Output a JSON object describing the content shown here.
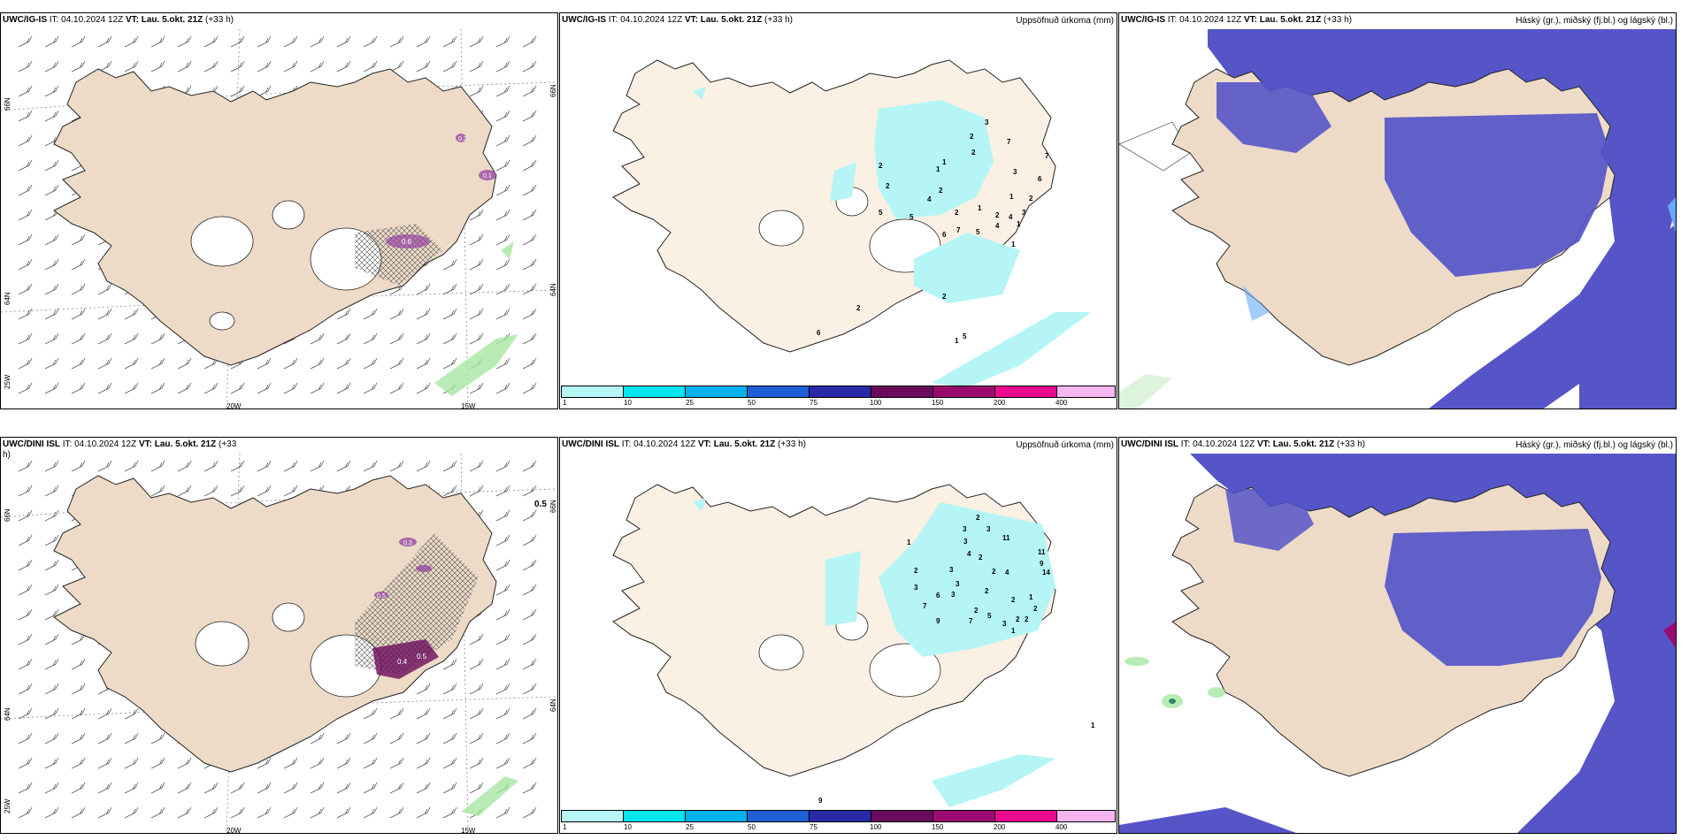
{
  "colors": {
    "land": "#eddbc8",
    "land_light": "#fbf0e4",
    "sea": "#ffffff",
    "cloud_blue": "#5555c8",
    "cloud_light": "#66aaff",
    "precip_1": "#b5f5f5",
    "precip_10": "#00e5ee",
    "precip_25": "#00b2ee",
    "precip_50": "#1f5fd6",
    "precip_75": "#2a2aa8",
    "precip_100": "#6a0b5c",
    "precip_150": "#9b0b6f",
    "precip_200": "#ea0a8e",
    "precip_400": "#f5b6f0",
    "green_light": "#a8e6a3",
    "purple_precip": "#9a4ba0"
  },
  "panels": [
    {
      "id": "ig-wind",
      "model": "UWC/IG-IS",
      "it_label": "IT:",
      "it_value": "04.10.2024 12Z",
      "vt_label": "VT:",
      "vt_value": "Lau. 5.okt. 21Z",
      "lead": "(+33 h)",
      "right_title": "",
      "lon_labels": [
        "20W",
        "15W"
      ],
      "lat_labels": [
        "66N",
        "64N",
        "25W"
      ],
      "lat_labels_right": [
        "66N",
        "64N"
      ],
      "precip_labels": [
        "0.6",
        "0.2",
        "0.1"
      ]
    },
    {
      "id": "ig-precip",
      "model": "UWC/IG-IS",
      "it_label": "IT:",
      "it_value": "04.10.2024 12Z",
      "vt_label": "VT:",
      "vt_value": "Lau. 5.okt. 21Z",
      "lead": "(+33 h)",
      "right_title": "Uppsöfnuð úrkoma (mm)",
      "numbers": [
        "3",
        "2",
        "2",
        "7",
        "7",
        "2",
        "1",
        "3",
        "6",
        "2",
        "2",
        "1",
        "2",
        "1",
        "2",
        "1",
        "4",
        "2",
        "4",
        "3",
        "5",
        "7",
        "5",
        "6",
        "1",
        "1",
        "4",
        "5",
        "2",
        "5",
        "1",
        "2",
        "6"
      ]
    },
    {
      "id": "ig-clouds",
      "model": "UWC/IG-IS",
      "it_label": "IT:",
      "it_value": "04.10.2024 12Z",
      "vt_label": "VT:",
      "vt_value": "Lau. 5.okt. 21Z",
      "lead": "(+33 h)",
      "right_title": "Háský (gr.), miðský (fj.bl.) og lágský (bl.)"
    },
    {
      "id": "dini-wind",
      "model": "UWC/DINI ISL",
      "it_label": "IT:",
      "it_value": "04.10.2024 12Z",
      "vt_label": "VT:",
      "vt_value": "Lau. 5.okt. 21Z",
      "lead": "(+33",
      "lead2": "h)",
      "right_title": "",
      "lon_labels": [
        "20W",
        "15W"
      ],
      "lat_labels": [
        "66N",
        "64N",
        "25W"
      ],
      "lat_labels_right": [
        "66N",
        "64N"
      ],
      "precip_labels": [
        "0.5",
        "0.4",
        "0.5",
        "0.3",
        "0.5"
      ]
    },
    {
      "id": "dini-precip",
      "model": "UWC/DINI ISL",
      "it_label": "IT:",
      "it_value": "04.10.2024 12Z",
      "vt_label": "VT:",
      "vt_value": "Lau. 5.okt. 21Z",
      "lead": "(+33 h)",
      "right_title": "Uppsöfnuð úrkoma (mm)",
      "numbers": [
        "2",
        "3",
        "3",
        "3",
        "11",
        "4",
        "11",
        "2",
        "9",
        "3",
        "14",
        "2",
        "4",
        "3",
        "2",
        "3",
        "1",
        "2",
        "6",
        "3",
        "2",
        "2",
        "7",
        "2",
        "2",
        "9",
        "5",
        "1",
        "7",
        "3",
        "1",
        "2",
        "1",
        "9"
      ]
    },
    {
      "id": "dini-clouds",
      "model": "UWC/DINI ISL",
      "it_label": "IT:",
      "it_value": "04.10.2024 12Z",
      "vt_label": "VT:",
      "vt_value": "Lau. 5.okt. 21Z",
      "lead": "(+33 h)",
      "right_title": "Háský (gr.), miðský (fj.bl.) og lágský (bl.)"
    }
  ],
  "colorbar": {
    "ticks": [
      "1",
      "10",
      "25",
      "50",
      "75",
      "100",
      "150",
      "200",
      "400"
    ]
  }
}
